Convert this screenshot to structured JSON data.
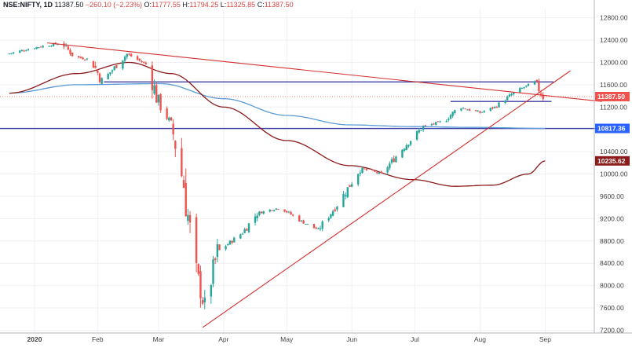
{
  "header": {
    "symbol": "NSE:NIFTY, 1D",
    "last": "11387.50",
    "change": "−260.10 (−2.23%)",
    "open_label": "O:",
    "open": "11777.55",
    "high_label": "H:",
    "high": "11794.25",
    "low_label": "L:",
    "low": "11325.85",
    "close_label": "C:",
    "close": "11387.50"
  },
  "price_labels": [
    {
      "value": "11387.50",
      "price": 11387.5,
      "color": "#ef5350"
    },
    {
      "value": "10817.36",
      "price": 10817.36,
      "color": "#2962ff"
    },
    {
      "value": "10235.62",
      "price": 10235.62,
      "color": "#8b1a1a"
    }
  ],
  "chart_data": {
    "type": "candlestick",
    "title": "",
    "ylim": [
      7150,
      12950
    ],
    "y_ticks": [
      7200,
      7600,
      8000,
      8400,
      8800,
      9200,
      9600,
      10000,
      10400,
      10800,
      11200,
      11600,
      12000,
      12400,
      12800
    ],
    "x_tick_labels": [
      "2020",
      "Feb",
      "Mar",
      "Apr",
      "May",
      "Jun",
      "Jul",
      "Aug",
      "Sep"
    ],
    "x_ticks_day": [
      0,
      30,
      59,
      90,
      120,
      151,
      181,
      212,
      243
    ],
    "colors": {
      "up": "#26a69a",
      "down": "#ef5350",
      "ma_short": "#5b9bd5",
      "ma_long": "#8b1a1a",
      "trendline": "#d32f2f",
      "hline": "#3f3fa8",
      "price_line": "#ef5350"
    },
    "ohlc_anchors": [
      {
        "day": -12,
        "close": 12150
      },
      {
        "day": 0,
        "close": 12260
      },
      {
        "day": 14,
        "close": 12350
      },
      {
        "day": 20,
        "close": 12100
      },
      {
        "day": 28,
        "close": 12050
      },
      {
        "day": 33,
        "close": 11660
      },
      {
        "day": 45,
        "close": 12150
      },
      {
        "day": 55,
        "close": 11950
      },
      {
        "day": 60,
        "close": 11250
      },
      {
        "day": 66,
        "close": 10900
      },
      {
        "day": 72,
        "close": 9800
      },
      {
        "day": 77,
        "close": 8400
      },
      {
        "day": 82,
        "close": 7610
      },
      {
        "day": 88,
        "close": 8600
      },
      {
        "day": 100,
        "close": 8950
      },
      {
        "day": 107,
        "close": 9300
      },
      {
        "day": 118,
        "close": 9400
      },
      {
        "day": 128,
        "close": 9150
      },
      {
        "day": 136,
        "close": 9000
      },
      {
        "day": 146,
        "close": 9500
      },
      {
        "day": 156,
        "close": 10100
      },
      {
        "day": 166,
        "close": 10000
      },
      {
        "day": 176,
        "close": 10450
      },
      {
        "day": 186,
        "close": 10850
      },
      {
        "day": 196,
        "close": 10950
      },
      {
        "day": 203,
        "close": 11200
      },
      {
        "day": 213,
        "close": 11100
      },
      {
        "day": 220,
        "close": 11200
      },
      {
        "day": 230,
        "close": 11480
      },
      {
        "day": 239,
        "close": 11650
      },
      {
        "day": 243,
        "close": 11387.5
      }
    ],
    "ma_short": [
      {
        "day": -12,
        "value": 11450
      },
      {
        "day": 20,
        "value": 11600
      },
      {
        "day": 60,
        "value": 11620
      },
      {
        "day": 90,
        "value": 11350
      },
      {
        "day": 120,
        "value": 11050
      },
      {
        "day": 150,
        "value": 10880
      },
      {
        "day": 180,
        "value": 10850
      },
      {
        "day": 210,
        "value": 10835
      },
      {
        "day": 243,
        "value": 10817
      }
    ],
    "ma_long": [
      {
        "day": -12,
        "value": 11450
      },
      {
        "day": 20,
        "value": 11800
      },
      {
        "day": 45,
        "value": 12000
      },
      {
        "day": 65,
        "value": 11800
      },
      {
        "day": 90,
        "value": 11200
      },
      {
        "day": 120,
        "value": 10600
      },
      {
        "day": 150,
        "value": 10150
      },
      {
        "day": 180,
        "value": 9900
      },
      {
        "day": 200,
        "value": 9780
      },
      {
        "day": 218,
        "value": 9800
      },
      {
        "day": 235,
        "value": 10000
      },
      {
        "day": 243,
        "value": 10235
      }
    ],
    "trendlines": [
      {
        "from": {
          "day": 6,
          "value": 12350
        },
        "to": {
          "day": 270,
          "value": 11300
        }
      },
      {
        "from": {
          "day": 80,
          "value": 7250
        },
        "to": {
          "day": 255,
          "value": 11850
        }
      }
    ],
    "hlines": [
      {
        "value": 11650,
        "from_day": 33,
        "to_day": 247
      },
      {
        "value": 10817,
        "from_day": -30,
        "to_day": 270
      },
      {
        "value": 11300,
        "from_day": 198,
        "to_day": 246
      }
    ]
  }
}
